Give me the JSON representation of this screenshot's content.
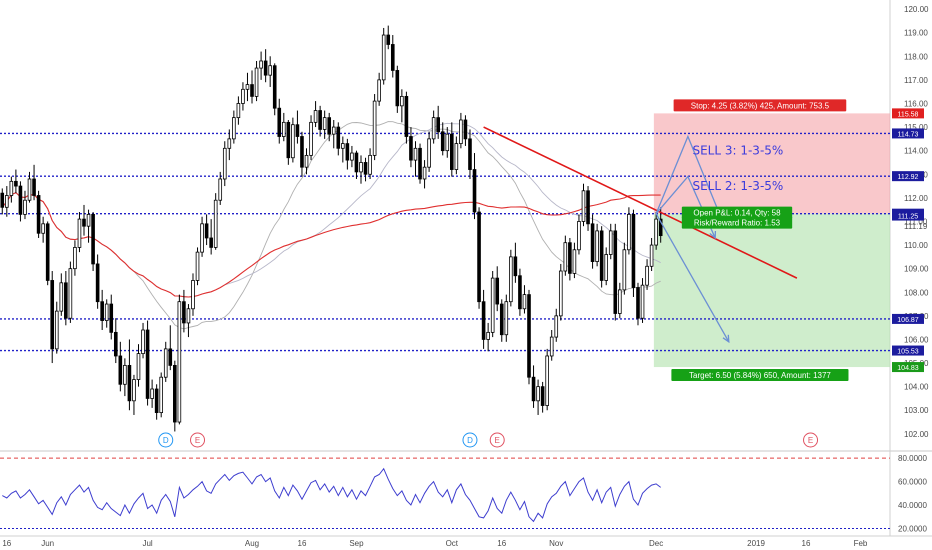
{
  "chart_data": {
    "type": "candlestick",
    "price_axis": {
      "ylim": [
        101.4,
        120.3
      ],
      "ticks": [
        "120.00",
        "119.00",
        "118.00",
        "117.00",
        "116.00",
        "115.00",
        "114.00",
        "113.00",
        "112.00",
        "111.00",
        "110.00",
        "109.00",
        "108.00",
        "107.00",
        "106.00",
        "105.00",
        "104.00",
        "103.00",
        "102.00"
      ],
      "tick_values": [
        120,
        119,
        118,
        117,
        116,
        115,
        114,
        113,
        112,
        111,
        110,
        109,
        108,
        107,
        106,
        105,
        104,
        103,
        102
      ]
    },
    "x_axis": {
      "labels": [
        "16",
        "Jun",
        "Jul",
        "Aug",
        "16",
        "Sep",
        "Oct",
        "16",
        "Nov",
        "Dec",
        "2019",
        "16",
        "Feb"
      ],
      "label_index": [
        1,
        10,
        32,
        55,
        66,
        78,
        99,
        110,
        122,
        144,
        166,
        177,
        189
      ],
      "n_bars": 196
    },
    "level_labels": [
      {
        "text": "115.58",
        "value": 115.58,
        "color": "#e02020"
      },
      {
        "text": "114.73",
        "value": 114.73,
        "color": "#1c1c9e"
      },
      {
        "text": "112.92",
        "value": 112.92,
        "color": "#1c1c9e"
      },
      {
        "text": "111.33",
        "value": 111.33,
        "color": "#1c1c9e"
      },
      {
        "text": "111.25",
        "value": 111.25,
        "color": "#1c1c9e"
      },
      {
        "text": "106.87",
        "value": 106.87,
        "color": "#1c1c9e"
      },
      {
        "text": "105.53",
        "value": 105.53,
        "color": "#1c1c9e"
      },
      {
        "text": "104.83",
        "value": 104.83,
        "color": "#1a9a1a"
      }
    ],
    "extra_tick": {
      "text": "111.19",
      "value": 111.19
    },
    "horizontal_levels": [
      114.73,
      112.92,
      111.33,
      106.87,
      105.53
    ],
    "position": {
      "entry": 111.33,
      "stop": 115.58,
      "target": 104.83,
      "start_index": 144,
      "end_index": 196,
      "stop_label": "Stop: 4.25 (3.82%) 425, Amount: 753.5",
      "target_label": "Target: 6.50 (5.84%) 650, Amount: 1377",
      "pnl_label": "Open P&L: 0.14, Qty: 58",
      "rr_label": "Risk/Reward Ratio: 1.53"
    },
    "sell_labels": [
      {
        "text": "SELL 3: 1-3-5%",
        "value": 114.0,
        "index": 152
      },
      {
        "text": "SELL 2: 1-3-5%",
        "value": 112.5,
        "index": 152
      },
      {
        "text": "SELL",
        "value": 110.9,
        "index": 152
      }
    ],
    "trendline": {
      "from": {
        "index": 106,
        "value": 115.0
      },
      "to": {
        "index": 175,
        "value": 108.6
      }
    },
    "arrows": [
      {
        "points": [
          [
            144,
            111.33
          ],
          [
            151,
            114.6
          ],
          [
            158,
            111.3
          ]
        ]
      },
      {
        "points": [
          [
            144,
            111.33
          ],
          [
            151,
            112.9
          ],
          [
            157,
            110.3
          ]
        ]
      },
      {
        "points": [
          [
            144,
            111.33
          ],
          [
            160,
            105.9
          ]
        ]
      }
    ],
    "event_markers": [
      {
        "letter": "D",
        "index": 36,
        "color": "#2196f3"
      },
      {
        "letter": "E",
        "index": 43,
        "color": "#e05060"
      },
      {
        "letter": "D",
        "index": 103,
        "color": "#2196f3"
      },
      {
        "letter": "E",
        "index": 109,
        "color": "#e05060"
      },
      {
        "letter": "E",
        "index": 178,
        "color": "#e05060"
      }
    ],
    "candles": [
      [
        112.2,
        112.4,
        111.3,
        111.6
      ],
      [
        111.6,
        112.5,
        111.2,
        112.1
      ],
      [
        112.1,
        112.9,
        111.8,
        112.7
      ],
      [
        112.7,
        113.2,
        112.2,
        112.5
      ],
      [
        112.5,
        112.7,
        111.0,
        111.3
      ],
      [
        111.3,
        112.3,
        111.1,
        111.9
      ],
      [
        111.9,
        113.1,
        111.8,
        112.8
      ],
      [
        112.8,
        113.4,
        111.9,
        112.1
      ],
      [
        112.1,
        112.3,
        110.3,
        110.5
      ],
      [
        110.5,
        111.2,
        110.1,
        110.9
      ],
      [
        110.9,
        111.0,
        108.3,
        108.5
      ],
      [
        108.5,
        108.9,
        105.0,
        105.6
      ],
      [
        105.6,
        107.6,
        105.4,
        107.2
      ],
      [
        107.2,
        108.8,
        107.0,
        108.4
      ],
      [
        108.4,
        108.9,
        106.6,
        106.9
      ],
      [
        106.9,
        109.3,
        106.7,
        109.0
      ],
      [
        109.0,
        110.2,
        108.7,
        109.9
      ],
      [
        109.9,
        111.4,
        109.7,
        111.1
      ],
      [
        111.1,
        111.7,
        110.4,
        110.8
      ],
      [
        110.8,
        111.5,
        110.1,
        111.3
      ],
      [
        111.3,
        111.4,
        108.9,
        109.2
      ],
      [
        109.2,
        109.6,
        107.3,
        107.6
      ],
      [
        107.6,
        108.1,
        106.4,
        106.8
      ],
      [
        106.8,
        107.7,
        106.5,
        107.5
      ],
      [
        107.5,
        107.9,
        106.0,
        106.3
      ],
      [
        106.3,
        106.9,
        105.0,
        105.3
      ],
      [
        105.3,
        105.9,
        103.8,
        104.1
      ],
      [
        104.1,
        105.2,
        103.6,
        104.9
      ],
      [
        104.9,
        106.0,
        103.0,
        103.4
      ],
      [
        103.4,
        104.5,
        102.8,
        104.3
      ],
      [
        104.3,
        105.8,
        104.0,
        105.4
      ],
      [
        105.4,
        106.7,
        105.2,
        106.4
      ],
      [
        106.4,
        106.8,
        103.2,
        103.5
      ],
      [
        103.5,
        104.3,
        103.1,
        103.9
      ],
      [
        103.9,
        104.1,
        102.6,
        102.9
      ],
      [
        102.9,
        104.6,
        102.7,
        104.4
      ],
      [
        104.4,
        105.9,
        104.2,
        105.6
      ],
      [
        105.6,
        106.6,
        104.7,
        104.9
      ],
      [
        104.9,
        105.1,
        102.1,
        102.5
      ],
      [
        102.5,
        107.9,
        102.4,
        107.6
      ],
      [
        107.6,
        108.1,
        106.3,
        106.7
      ],
      [
        106.7,
        107.5,
        106.1,
        107.3
      ],
      [
        107.3,
        108.8,
        107.0,
        108.5
      ],
      [
        108.5,
        109.9,
        108.3,
        109.7
      ],
      [
        109.7,
        111.2,
        109.5,
        110.9
      ],
      [
        110.9,
        111.3,
        110.0,
        110.3
      ],
      [
        110.3,
        111.1,
        109.6,
        109.9
      ],
      [
        109.9,
        112.2,
        109.8,
        111.9
      ],
      [
        111.9,
        113.1,
        111.7,
        112.8
      ],
      [
        112.8,
        114.4,
        112.5,
        114.1
      ],
      [
        114.1,
        114.9,
        113.6,
        114.5
      ],
      [
        114.5,
        115.7,
        114.3,
        115.4
      ],
      [
        115.4,
        116.3,
        115.1,
        116.0
      ],
      [
        116.0,
        116.9,
        115.7,
        116.6
      ],
      [
        116.6,
        117.3,
        116.1,
        116.8
      ],
      [
        116.8,
        117.4,
        116.0,
        116.3
      ],
      [
        116.3,
        117.8,
        116.1,
        117.5
      ],
      [
        117.5,
        118.2,
        117.0,
        117.8
      ],
      [
        117.8,
        118.3,
        116.9,
        117.2
      ],
      [
        117.2,
        118.0,
        116.7,
        117.6
      ],
      [
        117.6,
        117.7,
        115.5,
        115.8
      ],
      [
        115.8,
        116.2,
        114.3,
        114.6
      ],
      [
        114.6,
        115.6,
        114.4,
        115.2
      ],
      [
        115.2,
        115.3,
        113.4,
        113.7
      ],
      [
        113.7,
        115.4,
        113.5,
        115.1
      ],
      [
        115.1,
        115.7,
        114.3,
        114.6
      ],
      [
        114.6,
        114.8,
        112.9,
        113.3
      ],
      [
        113.3,
        114.1,
        113.0,
        113.8
      ],
      [
        113.8,
        115.5,
        113.6,
        115.2
      ],
      [
        115.2,
        116.1,
        115.0,
        115.7
      ],
      [
        115.7,
        115.9,
        114.6,
        114.9
      ],
      [
        114.9,
        115.7,
        114.5,
        115.4
      ],
      [
        115.4,
        115.6,
        114.4,
        114.7
      ],
      [
        114.7,
        115.3,
        114.1,
        115.0
      ],
      [
        115.0,
        115.2,
        113.8,
        114.1
      ],
      [
        114.1,
        114.6,
        113.5,
        114.3
      ],
      [
        114.3,
        114.5,
        113.2,
        113.6
      ],
      [
        113.6,
        114.2,
        113.3,
        113.9
      ],
      [
        113.9,
        114.0,
        112.8,
        113.1
      ],
      [
        113.1,
        113.8,
        112.6,
        113.5
      ],
      [
        113.5,
        113.7,
        112.7,
        113.0
      ],
      [
        113.0,
        114.1,
        112.8,
        113.8
      ],
      [
        113.8,
        116.4,
        113.6,
        116.1
      ],
      [
        116.1,
        117.3,
        115.9,
        117.0
      ],
      [
        117.0,
        119.2,
        116.8,
        118.9
      ],
      [
        118.9,
        119.3,
        118.3,
        118.5
      ],
      [
        118.5,
        118.9,
        117.1,
        117.4
      ],
      [
        117.4,
        117.6,
        115.6,
        115.9
      ],
      [
        115.9,
        116.6,
        115.2,
        116.3
      ],
      [
        116.3,
        116.5,
        114.3,
        114.6
      ],
      [
        114.6,
        115.0,
        113.3,
        113.6
      ],
      [
        113.6,
        114.4,
        112.9,
        114.1
      ],
      [
        114.1,
        114.3,
        112.6,
        112.8
      ],
      [
        112.8,
        113.6,
        112.4,
        113.3
      ],
      [
        113.3,
        114.8,
        113.1,
        114.5
      ],
      [
        114.5,
        115.7,
        114.3,
        115.4
      ],
      [
        115.4,
        115.9,
        114.5,
        114.8
      ],
      [
        114.8,
        115.2,
        113.8,
        114.0
      ],
      [
        114.0,
        115.0,
        113.7,
        114.7
      ],
      [
        114.7,
        115.2,
        112.9,
        113.2
      ],
      [
        113.2,
        114.6,
        113.0,
        114.3
      ],
      [
        114.3,
        115.6,
        114.1,
        115.3
      ],
      [
        115.3,
        115.5,
        114.2,
        114.5
      ],
      [
        114.5,
        114.9,
        112.8,
        113.2
      ],
      [
        113.2,
        113.9,
        111.1,
        111.4
      ],
      [
        111.4,
        111.6,
        107.3,
        107.6
      ],
      [
        107.6,
        108.1,
        105.6,
        106.0
      ],
      [
        106.0,
        106.7,
        105.5,
        106.3
      ],
      [
        106.3,
        108.9,
        106.1,
        108.6
      ],
      [
        108.6,
        109.1,
        107.2,
        107.5
      ],
      [
        107.5,
        107.7,
        105.9,
        106.2
      ],
      [
        106.2,
        107.9,
        105.9,
        107.6
      ],
      [
        107.6,
        109.8,
        107.4,
        109.5
      ],
      [
        109.5,
        110.1,
        108.4,
        108.7
      ],
      [
        108.7,
        109.0,
        107.0,
        107.3
      ],
      [
        107.3,
        108.3,
        107.1,
        107.9
      ],
      [
        107.9,
        108.1,
        104.1,
        104.4
      ],
      [
        104.4,
        104.9,
        103.1,
        103.4
      ],
      [
        103.4,
        104.3,
        102.8,
        104.0
      ],
      [
        104.0,
        104.2,
        102.9,
        103.2
      ],
      [
        103.2,
        105.6,
        103.0,
        105.3
      ],
      [
        105.3,
        106.4,
        105.1,
        106.1
      ],
      [
        106.1,
        107.3,
        105.9,
        107.0
      ],
      [
        107.0,
        109.2,
        106.8,
        108.9
      ],
      [
        108.9,
        110.4,
        108.7,
        110.1
      ],
      [
        110.1,
        110.3,
        108.5,
        108.8
      ],
      [
        108.8,
        110.1,
        108.6,
        109.8
      ],
      [
        109.8,
        111.3,
        109.6,
        111.0
      ],
      [
        111.0,
        112.6,
        110.8,
        112.3
      ],
      [
        112.3,
        112.5,
        110.6,
        110.9
      ],
      [
        110.9,
        111.3,
        109.0,
        109.3
      ],
      [
        109.3,
        110.9,
        109.1,
        110.6
      ],
      [
        110.6,
        110.8,
        108.2,
        108.5
      ],
      [
        108.5,
        109.9,
        108.3,
        109.6
      ],
      [
        109.6,
        110.9,
        109.4,
        110.6
      ],
      [
        110.6,
        110.9,
        106.8,
        107.1
      ],
      [
        107.1,
        108.4,
        106.9,
        108.1
      ],
      [
        108.1,
        110.1,
        107.9,
        109.8
      ],
      [
        109.8,
        111.6,
        109.6,
        111.3
      ],
      [
        111.3,
        111.5,
        107.8,
        108.2
      ],
      [
        108.2,
        108.4,
        106.6,
        106.9
      ],
      [
        106.9,
        108.6,
        106.7,
        108.3
      ],
      [
        108.3,
        109.4,
        108.1,
        109.1
      ],
      [
        109.1,
        110.3,
        108.9,
        110.0
      ],
      [
        110.0,
        111.4,
        109.8,
        111.1
      ],
      [
        111.1,
        111.6,
        110.1,
        110.4
      ]
    ],
    "rsi": {
      "ylim": [
        17.0,
        83.5
      ],
      "ticks": [
        "80.0000",
        "60.0000",
        "40.0000",
        "20.0000"
      ],
      "tick_values": [
        80,
        60,
        40,
        20
      ],
      "upper": 80,
      "lower": 20,
      "values": [
        48,
        46,
        50,
        52,
        46,
        49,
        53,
        47,
        41,
        44,
        38,
        32,
        42,
        47,
        40,
        49,
        53,
        57,
        51,
        55,
        44,
        38,
        36,
        42,
        37,
        34,
        31,
        40,
        33,
        41,
        46,
        50,
        37,
        40,
        33,
        44,
        49,
        43,
        30,
        55,
        46,
        49,
        53,
        56,
        60,
        52,
        50,
        58,
        62,
        66,
        61,
        65,
        67,
        68,
        63,
        58,
        64,
        66,
        60,
        63,
        52,
        46,
        55,
        48,
        57,
        52,
        45,
        52,
        59,
        61,
        53,
        58,
        51,
        56,
        48,
        55,
        47,
        53,
        45,
        52,
        48,
        56,
        64,
        66,
        71,
        62,
        54,
        48,
        52,
        44,
        40,
        49,
        42,
        50,
        56,
        60,
        51,
        47,
        53,
        42,
        53,
        58,
        49,
        44,
        37,
        30,
        29,
        35,
        46,
        37,
        33,
        44,
        51,
        44,
        36,
        43,
        30,
        26,
        33,
        29,
        41,
        47,
        50,
        56,
        60,
        48,
        54,
        60,
        63,
        51,
        44,
        53,
        42,
        51,
        55,
        39,
        49,
        56,
        60,
        45,
        40,
        50,
        54,
        57,
        58,
        55
      ]
    }
  }
}
